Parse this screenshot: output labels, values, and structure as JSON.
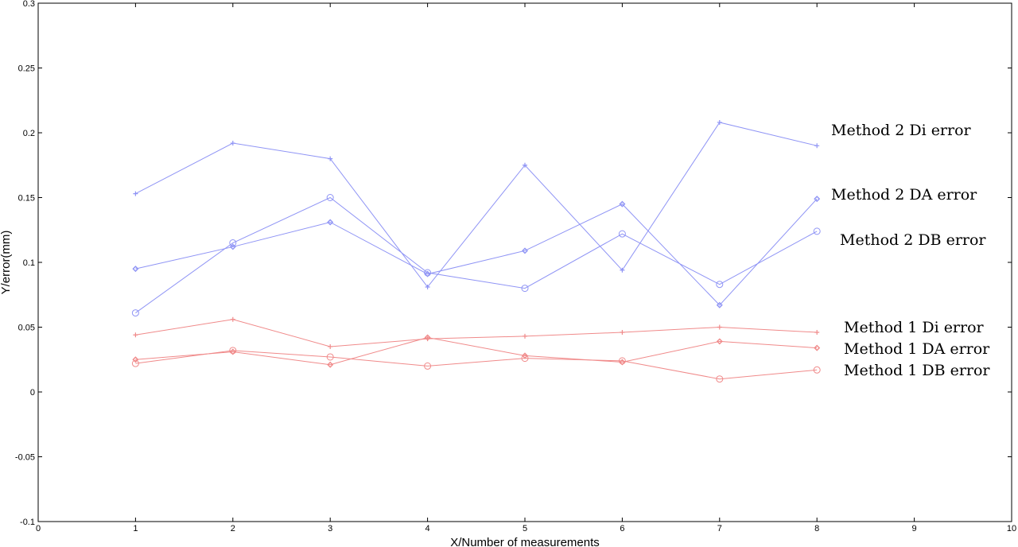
{
  "chart_data": {
    "type": "line",
    "title": "",
    "xlabel": "X/Number of measurements",
    "ylabel": "Y/error(mm)",
    "xlim": [
      0,
      10
    ],
    "ylim": [
      -0.1,
      0.3
    ],
    "xticks": [
      "0",
      "1",
      "2",
      "3",
      "4",
      "5",
      "6",
      "7",
      "8",
      "9",
      "10"
    ],
    "yticks": [
      "-0.1",
      "-0.05",
      "0",
      "0.05",
      "0.1",
      "0.15",
      "0.2",
      "0.25",
      "0.3"
    ],
    "grid": false,
    "x": [
      1,
      2,
      3,
      4,
      5,
      6,
      7,
      8
    ],
    "series": [
      {
        "name": "Method 2 Di error",
        "color": "#8f94f5",
        "marker": "plus",
        "values": [
          0.153,
          0.192,
          0.18,
          0.081,
          0.175,
          0.094,
          0.208,
          0.19
        ]
      },
      {
        "name": "Method 2 DA error",
        "color": "#8f94f5",
        "marker": "diamond",
        "values": [
          0.095,
          0.112,
          0.131,
          0.091,
          0.109,
          0.145,
          0.067,
          0.149
        ]
      },
      {
        "name": "Method 2 DB error",
        "color": "#8f94f5",
        "marker": "circle",
        "values": [
          0.061,
          0.115,
          0.15,
          0.092,
          0.08,
          0.122,
          0.083,
          0.124
        ]
      },
      {
        "name": "Method 1 Di error",
        "color": "#f08a8a",
        "marker": "plus",
        "values": [
          0.044,
          0.056,
          0.035,
          0.041,
          0.043,
          0.046,
          0.05,
          0.046
        ]
      },
      {
        "name": "Method 1 DA error",
        "color": "#f08a8a",
        "marker": "diamond",
        "values": [
          0.025,
          0.031,
          0.021,
          0.042,
          0.028,
          0.023,
          0.039,
          0.034
        ]
      },
      {
        "name": "Method 1 DB error",
        "color": "#f08a8a",
        "marker": "circle",
        "values": [
          0.022,
          0.032,
          0.027,
          0.02,
          0.026,
          0.024,
          0.01,
          0.017
        ]
      }
    ],
    "annotations": [
      "Method 2 Di error",
      "Method 2 DA error",
      "Method 2 DB error",
      "Method 1 Di error",
      "Method 1 DA error",
      "Method 1 DB error"
    ]
  }
}
